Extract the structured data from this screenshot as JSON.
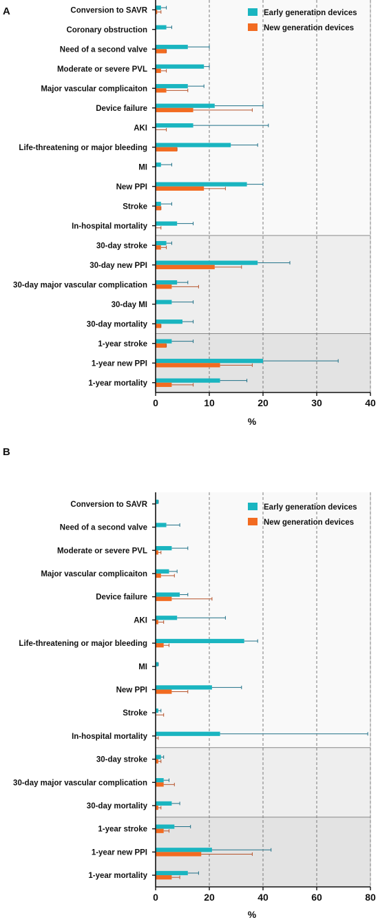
{
  "colors": {
    "early": "#1ab5c0",
    "new": "#f26b21",
    "early_err": "#1d6f86",
    "new_err": "#b5522a",
    "band0": "#f9f9f9",
    "band1": "#eeeeee",
    "band2": "#e3e3e3",
    "grid": "#7a7a7a"
  },
  "chart_data": [
    {
      "type": "bar",
      "orientation": "horizontal",
      "panel": "A",
      "xlabel": "%",
      "xlim": [
        0,
        40
      ],
      "xticks": [
        0,
        10,
        20,
        30,
        40
      ],
      "grid": "vertical dashed",
      "legend_position": "top-right",
      "categories": [
        "Conversion to SAVR",
        "Coronary obstruction",
        "Need of a second valve",
        "Moderate or severe PVL",
        "Major vascular complicaiton",
        "Device failure",
        "AKI",
        "Life-threatening or major bleeding",
        "MI",
        "New PPI",
        "Stroke",
        "In-hospital mortality",
        "30-day stroke",
        "30-day new PPI",
        "30-day major vascular complication",
        "30-day MI",
        "30-day mortality",
        "1-year stroke",
        "1-year new PPI",
        "1-year mortality"
      ],
      "groups": [
        {
          "label": "In-hospital",
          "count": 12
        },
        {
          "label": "30-day",
          "count": 5
        },
        {
          "label": "1-year",
          "count": 3
        }
      ],
      "series": [
        {
          "name": "Early generation devices",
          "values": [
            1,
            2,
            6,
            9,
            6,
            11,
            7,
            14,
            1,
            17,
            1,
            4,
            2,
            19,
            4,
            3,
            5,
            3,
            20,
            12
          ],
          "error_upper": [
            2,
            3,
            10,
            10,
            9,
            20,
            21,
            19,
            3,
            20,
            3,
            7,
            3,
            25,
            6,
            7,
            7,
            7,
            34,
            17
          ]
        },
        {
          "name": "New generation devices",
          "values": [
            0.3,
            null,
            2,
            1,
            2,
            7,
            null,
            4,
            null,
            9,
            1,
            null,
            1,
            11,
            3,
            null,
            1,
            2,
            12,
            3
          ],
          "error_upper": [
            1,
            null,
            2,
            2,
            6,
            18,
            2,
            4,
            null,
            13,
            1,
            1,
            2,
            16,
            8,
            null,
            1,
            2,
            18,
            7
          ]
        }
      ]
    },
    {
      "type": "bar",
      "orientation": "horizontal",
      "panel": "B",
      "xlabel": "%",
      "xlim": [
        0,
        80
      ],
      "xticks": [
        0,
        20,
        40,
        60,
        80
      ],
      "grid": "vertical dashed",
      "legend_position": "top-right",
      "categories": [
        "Conversion to SAVR",
        "Need of a second valve",
        "Moderate or severe PVL",
        "Major vascular complicaiton",
        "Device failure",
        "AKI",
        "Life-threatening or major bleeding",
        "MI",
        "New PPI",
        "Stroke",
        "In-hospital mortality",
        "30-day stroke",
        "30-day major vascular complication",
        "30-day mortality",
        "1-year stroke",
        "1-year new PPI",
        "1-year mortality"
      ],
      "groups": [
        {
          "label": "In-hospital",
          "count": 11
        },
        {
          "label": "30-day",
          "count": 3
        },
        {
          "label": "1-year",
          "count": 3
        }
      ],
      "series": [
        {
          "name": "Early generation devices",
          "values": [
            1,
            4,
            6,
            5,
            9,
            8,
            33,
            1,
            21,
            1,
            24,
            2,
            3,
            6,
            7,
            21,
            12
          ],
          "error_upper": [
            1,
            9,
            12,
            8,
            12,
            26,
            38,
            1,
            32,
            2,
            79,
            3,
            5,
            9,
            13,
            43,
            16
          ]
        },
        {
          "name": "New generation devices",
          "values": [
            null,
            null,
            1,
            2,
            6,
            1,
            3,
            null,
            6,
            null,
            null,
            1,
            3,
            1,
            3,
            17,
            6
          ],
          "error_upper": [
            null,
            null,
            2,
            7,
            21,
            3,
            5,
            null,
            12,
            3,
            1,
            2,
            7,
            2,
            5,
            36,
            9
          ]
        }
      ]
    }
  ]
}
